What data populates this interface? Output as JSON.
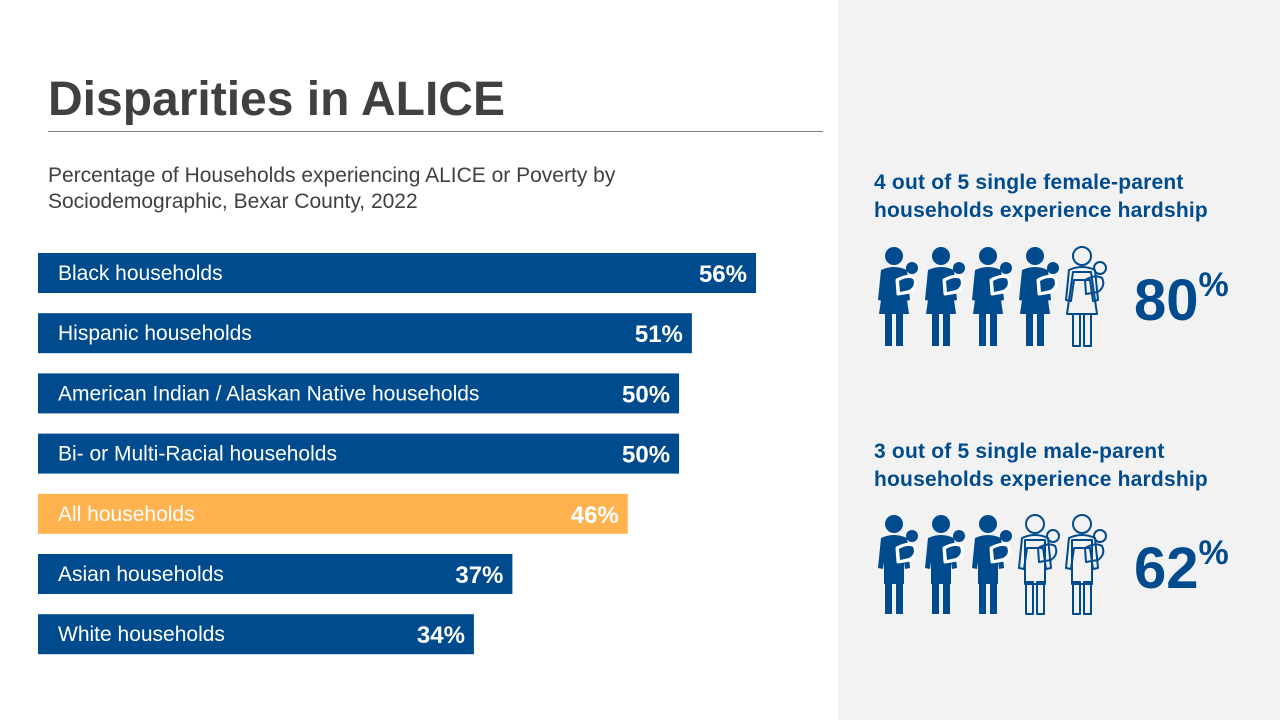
{
  "title": "Disparities in ALICE",
  "subtitle": {
    "line1": "Percentage of Households experiencing ALICE or Poverty by",
    "line2": "Sociodemographic, Bexar County, 2022"
  },
  "chart_data": {
    "type": "bar",
    "orientation": "horizontal",
    "categories": [
      "Black households",
      "Hispanic households",
      "American Indian / Alaskan Native households",
      "Bi- or Multi-Racial households",
      "All households",
      "Asian households",
      "White households"
    ],
    "values": [
      56,
      51,
      50,
      50,
      46,
      37,
      34
    ],
    "value_labels": [
      "56%",
      "51%",
      "50%",
      "50%",
      "46%",
      "37%",
      "34%"
    ],
    "highlight": "All households",
    "xlim": [
      0,
      56
    ],
    "grid": false,
    "colors": {
      "default": "#004b8d",
      "highlight": "#ffb24e"
    }
  },
  "stats": [
    {
      "line1": "4 out of 5 single female-parent",
      "line2": "households experience hardship",
      "value": "80",
      "unit": "%",
      "icons_filled": 4,
      "icons_total": 5,
      "icon": "mother-with-child-icon"
    },
    {
      "line1": "3 out of 5 single male-parent",
      "line2": "households experience hardship",
      "value": "62",
      "unit": "%",
      "icons_filled": 3,
      "icons_total": 5,
      "icon": "father-with-child-icon"
    }
  ],
  "colors": {
    "accent": "#004b8d",
    "panel": "#f2f2f2",
    "text": "#404040"
  }
}
